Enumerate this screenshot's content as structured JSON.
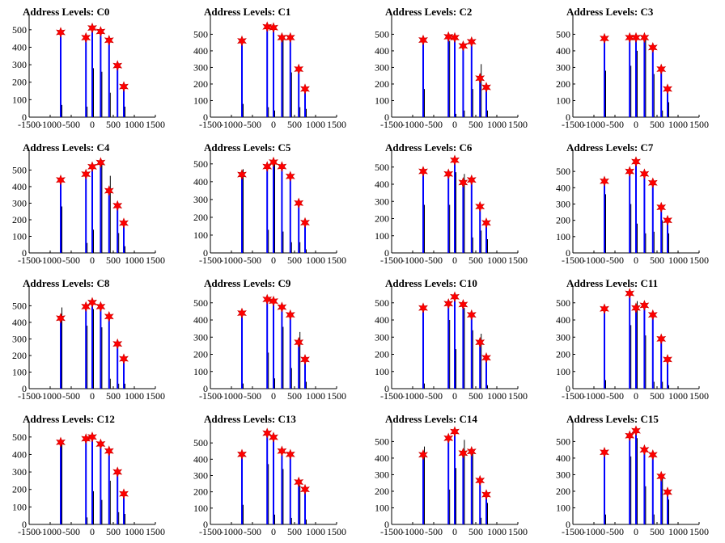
{
  "chart_data": [
    {
      "type": "bar",
      "title": "Address Levels: C0",
      "xlim": [
        -1500,
        1500
      ],
      "ylim": [
        0,
        550
      ],
      "x": [
        -750,
        -150,
        0,
        200,
        400,
        600,
        750
      ],
      "marker_values": [
        485,
        455,
        510,
        490,
        440,
        295,
        175
      ],
      "values": [
        485,
        455,
        510,
        490,
        440,
        295,
        175
      ],
      "black_values": [
        70,
        60,
        280,
        260,
        140,
        0,
        60
      ]
    },
    {
      "type": "bar",
      "title": "Address Levels: C1",
      "xlim": [
        -1500,
        1500
      ],
      "ylim": [
        0,
        580
      ],
      "x": [
        -750,
        -150,
        0,
        200,
        400,
        600,
        750
      ],
      "marker_values": [
        460,
        545,
        540,
        480,
        480,
        290,
        170
      ],
      "values": [
        460,
        545,
        540,
        480,
        480,
        290,
        170
      ],
      "black_values": [
        80,
        60,
        40,
        470,
        270,
        60,
        50
      ]
    },
    {
      "type": "bar",
      "title": "Address Levels: C2",
      "xlim": [
        -1500,
        1500
      ],
      "ylim": [
        0,
        580
      ],
      "x": [
        -750,
        -150,
        0,
        200,
        400,
        600,
        750
      ],
      "marker_values": [
        465,
        485,
        480,
        430,
        455,
        235,
        180
      ],
      "values": [
        465,
        485,
        480,
        430,
        455,
        235,
        180
      ],
      "black_values": [
        170,
        460,
        20,
        40,
        170,
        320,
        40
      ]
    },
    {
      "type": "bar",
      "title": "Address Levels: C3",
      "xlim": [
        -1500,
        1500
      ],
      "ylim": [
        0,
        580
      ],
      "x": [
        -750,
        -150,
        0,
        200,
        400,
        600,
        750
      ],
      "marker_values": [
        475,
        480,
        480,
        480,
        420,
        290,
        170
      ],
      "values": [
        475,
        480,
        480,
        480,
        420,
        290,
        170
      ],
      "black_values": [
        280,
        310,
        400,
        470,
        260,
        40,
        90
      ]
    },
    {
      "type": "bar",
      "title": "Address Levels: C4",
      "xlim": [
        -1500,
        1500
      ],
      "ylim": [
        0,
        580
      ],
      "x": [
        -750,
        -150,
        0,
        200,
        400,
        600,
        750
      ],
      "marker_values": [
        440,
        475,
        520,
        545,
        375,
        285,
        180
      ],
      "values": [
        440,
        475,
        520,
        545,
        375,
        285,
        180
      ],
      "black_values": [
        280,
        60,
        140,
        560,
        465,
        120,
        40
      ]
    },
    {
      "type": "bar",
      "title": "Address Levels: C5",
      "xlim": [
        -1500,
        1500
      ],
      "ylim": [
        0,
        540
      ],
      "x": [
        -750,
        -150,
        0,
        200,
        400,
        600,
        750
      ],
      "marker_values": [
        440,
        485,
        510,
        485,
        430,
        280,
        170
      ],
      "values": [
        440,
        485,
        510,
        485,
        430,
        280,
        170
      ],
      "black_values": [
        470,
        130,
        500,
        120,
        60,
        60,
        20
      ]
    },
    {
      "type": "bar",
      "title": "Address Levels: C6",
      "xlim": [
        -1500,
        1500
      ],
      "ylim": [
        0,
        560
      ],
      "x": [
        -750,
        -150,
        0,
        200,
        400,
        600,
        750
      ],
      "marker_values": [
        475,
        460,
        540,
        410,
        425,
        270,
        175
      ],
      "values": [
        475,
        460,
        540,
        410,
        425,
        270,
        175
      ],
      "black_values": [
        280,
        280,
        470,
        460,
        90,
        130,
        80
      ]
    },
    {
      "type": "bar",
      "title": "Address Levels: C7",
      "xlim": [
        -1500,
        1500
      ],
      "ylim": [
        0,
        590
      ],
      "x": [
        -750,
        -150,
        0,
        200,
        400,
        600,
        750
      ],
      "marker_values": [
        440,
        500,
        560,
        485,
        430,
        280,
        200
      ],
      "values": [
        440,
        500,
        560,
        485,
        430,
        280,
        200
      ],
      "black_values": [
        360,
        300,
        180,
        120,
        130,
        200,
        120
      ]
    },
    {
      "type": "bar",
      "title": "Address Levels: C8",
      "xlim": [
        -1500,
        1500
      ],
      "ylim": [
        0,
        580
      ],
      "x": [
        -750,
        -150,
        0,
        200,
        400,
        600,
        750
      ],
      "marker_values": [
        425,
        495,
        520,
        495,
        435,
        270,
        180
      ],
      "values": [
        425,
        495,
        520,
        495,
        435,
        270,
        180
      ],
      "black_values": [
        490,
        380,
        480,
        370,
        60,
        30,
        30
      ]
    },
    {
      "type": "bar",
      "title": "Address Levels: C9",
      "xlim": [
        -1500,
        1500
      ],
      "ylim": [
        0,
        560
      ],
      "x": [
        -750,
        -150,
        0,
        200,
        400,
        600,
        750
      ],
      "marker_values": [
        440,
        520,
        510,
        475,
        430,
        270,
        170
      ],
      "values": [
        440,
        520,
        510,
        475,
        430,
        270,
        170
      ],
      "black_values": [
        30,
        210,
        60,
        360,
        120,
        330,
        40
      ]
    },
    {
      "type": "bar",
      "title": "Address Levels: C10",
      "xlim": [
        -1500,
        1500
      ],
      "ylim": [
        0,
        560
      ],
      "x": [
        -750,
        -150,
        0,
        200,
        400,
        600,
        750
      ],
      "marker_values": [
        470,
        495,
        535,
        490,
        430,
        270,
        180
      ],
      "values": [
        470,
        495,
        535,
        490,
        430,
        270,
        180
      ],
      "black_values": [
        30,
        400,
        230,
        470,
        340,
        320,
        20
      ]
    },
    {
      "type": "bar",
      "title": "Address Levels: C11",
      "xlim": [
        -1500,
        1500
      ],
      "ylim": [
        0,
        560
      ],
      "x": [
        -750,
        -150,
        0,
        200,
        400,
        600,
        750
      ],
      "marker_values": [
        465,
        555,
        470,
        485,
        430,
        290,
        170
      ],
      "values": [
        465,
        555,
        470,
        485,
        430,
        290,
        170
      ],
      "black_values": [
        50,
        370,
        510,
        310,
        40,
        40,
        20
      ]
    },
    {
      "type": "bar",
      "title": "Address Levels: C12",
      "xlim": [
        -1500,
        1500
      ],
      "ylim": [
        0,
        550
      ],
      "x": [
        -750,
        -150,
        0,
        200,
        400,
        600,
        750
      ],
      "marker_values": [
        470,
        490,
        500,
        460,
        420,
        300,
        175
      ],
      "values": [
        470,
        490,
        500,
        460,
        420,
        300,
        175
      ],
      "black_values": [
        470,
        40,
        190,
        140,
        250,
        70,
        60
      ]
    },
    {
      "type": "bar",
      "title": "Address Levels: C13",
      "xlim": [
        -1500,
        1500
      ],
      "ylim": [
        0,
        590
      ],
      "x": [
        -750,
        -150,
        0,
        200,
        400,
        600,
        750
      ],
      "marker_values": [
        430,
        560,
        535,
        450,
        430,
        260,
        215
      ],
      "values": [
        430,
        560,
        535,
        450,
        430,
        260,
        215
      ],
      "black_values": [
        120,
        370,
        60,
        340,
        40,
        240,
        30
      ]
    },
    {
      "type": "bar",
      "title": "Address Levels: C14",
      "xlim": [
        -1500,
        1500
      ],
      "ylim": [
        0,
        580
      ],
      "x": [
        -750,
        -150,
        0,
        200,
        400,
        600,
        750
      ],
      "marker_values": [
        420,
        520,
        560,
        430,
        440,
        265,
        180
      ],
      "values": [
        420,
        520,
        560,
        430,
        440,
        265,
        180
      ],
      "black_values": [
        470,
        210,
        340,
        510,
        440,
        40,
        130
      ]
    },
    {
      "type": "bar",
      "title": "Address Levels: C15",
      "xlim": [
        -1500,
        1500
      ],
      "ylim": [
        0,
        580
      ],
      "x": [
        -750,
        -150,
        0,
        200,
        400,
        600,
        750
      ],
      "marker_values": [
        435,
        535,
        565,
        450,
        420,
        290,
        195
      ],
      "values": [
        435,
        535,
        565,
        450,
        420,
        290,
        195
      ],
      "black_values": [
        60,
        410,
        520,
        230,
        60,
        280,
        150
      ]
    }
  ],
  "axis": {
    "x_ticks": [
      -1500,
      -1000,
      -500,
      0,
      500,
      1000,
      1500
    ],
    "y_ticks_default": [
      0,
      100,
      200,
      300,
      400,
      500
    ]
  },
  "colors": {
    "bar": "#0000ff",
    "black_bar": "#000000",
    "marker_fill": "#ff0000",
    "marker_stroke": "#cc0000"
  }
}
